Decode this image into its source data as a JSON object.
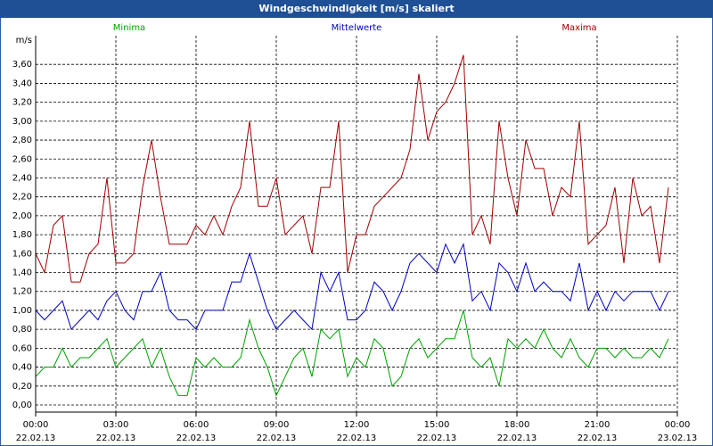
{
  "chart_data": {
    "type": "line",
    "title": "Windgeschwindigkeit [m/s] skaliert",
    "y_label": "m/s",
    "legend": "top",
    "grid": true,
    "x": [
      0,
      20,
      40,
      60,
      80,
      100,
      120,
      140,
      160,
      180,
      200,
      220,
      240,
      260,
      280,
      300,
      320,
      340,
      360,
      380,
      400,
      420,
      440,
      460,
      480,
      500,
      520,
      540,
      560,
      580,
      600,
      620,
      640,
      660,
      680,
      700,
      720,
      740,
      760,
      780,
      800,
      820,
      840,
      860,
      880,
      900,
      920,
      940,
      960,
      980,
      1000,
      1020,
      1040,
      1060,
      1080,
      1100,
      1120,
      1140,
      1160,
      1180,
      1200,
      1220,
      1240,
      1260,
      1280,
      1300,
      1320,
      1340,
      1360,
      1380,
      1400,
      1420
    ],
    "xlim": [
      0,
      1440
    ],
    "xticks": [
      {
        "value": 0,
        "label": "00:00",
        "date": "22.02.13"
      },
      {
        "value": 180,
        "label": "03:00",
        "date": "22.02.13"
      },
      {
        "value": 360,
        "label": "06:00",
        "date": "22.02.13"
      },
      {
        "value": 540,
        "label": "09:00",
        "date": "22.02.13"
      },
      {
        "value": 720,
        "label": "12:00",
        "date": "22.02.13"
      },
      {
        "value": 900,
        "label": "15:00",
        "date": "22.02.13"
      },
      {
        "value": 1080,
        "label": "18:00",
        "date": "22.02.13"
      },
      {
        "value": 1260,
        "label": "21:00",
        "date": "22.02.13"
      },
      {
        "value": 1440,
        "label": "00:00",
        "date": "23.02.13"
      }
    ],
    "ylim": [
      0,
      3.8
    ],
    "yticks": [
      {
        "value": 0,
        "label": "0,00"
      },
      {
        "value": 0.2,
        "label": "0,20"
      },
      {
        "value": 0.4,
        "label": "0,40"
      },
      {
        "value": 0.6,
        "label": "0,60"
      },
      {
        "value": 0.8,
        "label": "0,80"
      },
      {
        "value": 1.0,
        "label": "1,00"
      },
      {
        "value": 1.2,
        "label": "1,20"
      },
      {
        "value": 1.4,
        "label": "1,40"
      },
      {
        "value": 1.6,
        "label": "1,60"
      },
      {
        "value": 1.8,
        "label": "1,80"
      },
      {
        "value": 2.0,
        "label": "2,00"
      },
      {
        "value": 2.2,
        "label": "2,20"
      },
      {
        "value": 2.4,
        "label": "2,40"
      },
      {
        "value": 2.6,
        "label": "2,60"
      },
      {
        "value": 2.8,
        "label": "2,80"
      },
      {
        "value": 3.0,
        "label": "3,00"
      },
      {
        "value": 3.2,
        "label": "3,20"
      },
      {
        "value": 3.4,
        "label": "3,40"
      },
      {
        "value": 3.6,
        "label": "3,60"
      }
    ],
    "series": [
      {
        "name": "Minima",
        "color": "#00a000",
        "values": [
          0.3,
          0.4,
          0.4,
          0.6,
          0.4,
          0.5,
          0.5,
          0.6,
          0.7,
          0.4,
          0.5,
          0.6,
          0.7,
          0.4,
          0.6,
          0.3,
          0.1,
          0.1,
          0.5,
          0.4,
          0.5,
          0.4,
          0.4,
          0.5,
          0.9,
          0.6,
          0.4,
          0.1,
          0.3,
          0.5,
          0.6,
          0.3,
          0.8,
          0.7,
          0.8,
          0.3,
          0.5,
          0.4,
          0.7,
          0.6,
          0.2,
          0.3,
          0.6,
          0.7,
          0.5,
          0.6,
          0.7,
          0.7,
          1.0,
          0.5,
          0.4,
          0.5,
          0.2,
          0.7,
          0.6,
          0.7,
          0.6,
          0.8,
          0.6,
          0.5,
          0.7,
          0.5,
          0.4,
          0.6,
          0.6,
          0.5,
          0.6,
          0.5,
          0.5,
          0.6,
          0.5,
          0.7
        ]
      },
      {
        "name": "Mittelwerte",
        "color": "#0000c0",
        "values": [
          1.0,
          0.9,
          1.0,
          1.1,
          0.8,
          0.9,
          1.0,
          0.9,
          1.1,
          1.2,
          1.0,
          0.9,
          1.2,
          1.2,
          1.4,
          1.0,
          0.9,
          0.9,
          0.8,
          1.0,
          1.0,
          1.0,
          1.3,
          1.3,
          1.6,
          1.3,
          1.0,
          0.8,
          0.9,
          1.0,
          0.9,
          0.8,
          1.4,
          1.2,
          1.4,
          0.9,
          0.9,
          1.0,
          1.3,
          1.2,
          1.0,
          1.2,
          1.5,
          1.6,
          1.5,
          1.4,
          1.7,
          1.5,
          1.7,
          1.1,
          1.2,
          1.0,
          1.5,
          1.4,
          1.2,
          1.5,
          1.2,
          1.3,
          1.2,
          1.2,
          1.1,
          1.5,
          1.0,
          1.2,
          1.0,
          1.2,
          1.1,
          1.2,
          1.2,
          1.2,
          1.0,
          1.2
        ]
      },
      {
        "name": "Maxima",
        "color": "#a00000",
        "values": [
          1.6,
          1.4,
          1.9,
          2.0,
          1.3,
          1.3,
          1.6,
          1.7,
          2.4,
          1.5,
          1.5,
          1.6,
          2.3,
          2.8,
          2.2,
          1.7,
          1.7,
          1.7,
          1.9,
          1.8,
          2.0,
          1.8,
          2.1,
          2.3,
          3.0,
          2.1,
          2.1,
          2.4,
          1.8,
          1.9,
          2.0,
          1.6,
          2.3,
          2.3,
          3.0,
          1.4,
          1.8,
          1.8,
          2.1,
          2.2,
          2.3,
          2.4,
          2.7,
          3.5,
          2.8,
          3.1,
          3.2,
          3.4,
          3.7,
          1.8,
          2.0,
          1.7,
          3.0,
          2.4,
          2.0,
          2.8,
          2.5,
          2.5,
          2.0,
          2.3,
          2.2,
          3.0,
          1.7,
          1.8,
          1.9,
          2.3,
          1.5,
          2.4,
          2.0,
          2.1,
          1.5,
          2.3
        ]
      }
    ]
  }
}
